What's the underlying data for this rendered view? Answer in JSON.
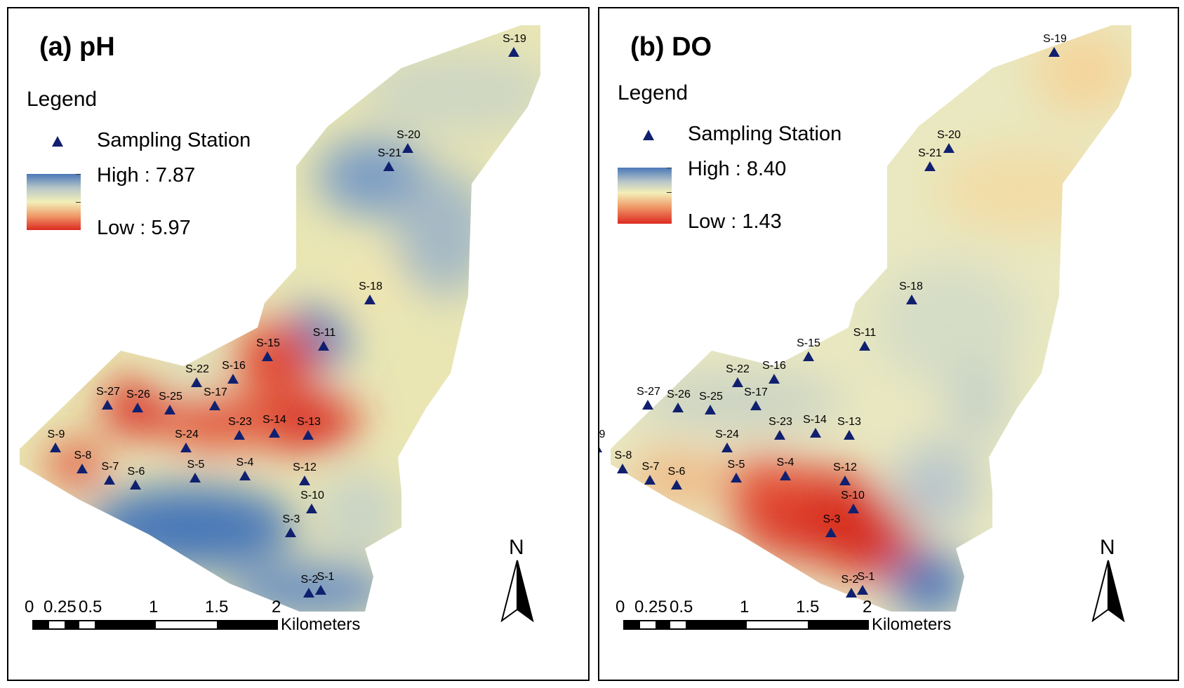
{
  "panels": [
    {
      "id": "a",
      "title": "(a) pH",
      "legend_title": "Legend",
      "station_label": "Sampling Station",
      "high_label": "High : 7.87",
      "low_label": "Low : 5.97",
      "ramp_colors": [
        "#4a78b8",
        "#f3efb8",
        "#dd2a20"
      ]
    },
    {
      "id": "b",
      "title": "(b) DO",
      "legend_title": "Legend",
      "station_label": "Sampling Station",
      "high_label": "High : 8.40",
      "low_label": "Low : 1.43",
      "ramp_colors": [
        "#4a78b8",
        "#f3efb8",
        "#dd2a20"
      ]
    }
  ],
  "stations": [
    "S-1",
    "S-2",
    "S-3",
    "S-4",
    "S-5",
    "S-6",
    "S-7",
    "S-8",
    "S-9",
    "S-10",
    "S-11",
    "S-12",
    "S-13",
    "S-14",
    "S-15",
    "S-16",
    "S-17",
    "S-18",
    "S-19",
    "S-20",
    "S-21",
    "S-22",
    "S-23",
    "S-24",
    "S-25",
    "S-26",
    "S-27"
  ],
  "scale_bar": {
    "ticks": [
      "0",
      "0.25",
      "0.5",
      "1",
      "1.5",
      "2"
    ],
    "unit": "Kilometers"
  },
  "north_arrow": {
    "label": "N",
    "icon": "north-arrow-icon"
  },
  "colors": {
    "high": "#4a78b8",
    "mid": "#f3efb8",
    "low": "#dd2a20",
    "station_marker": "#10206f"
  }
}
